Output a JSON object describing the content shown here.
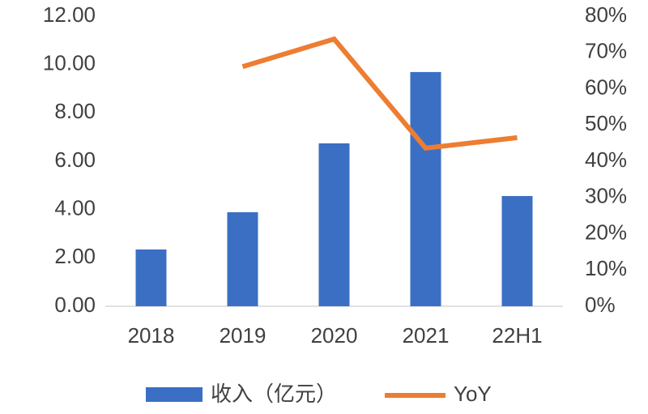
{
  "chart_data": {
    "type": "bar",
    "categories": [
      "2018",
      "2019",
      "2020",
      "2021",
      "22H1"
    ],
    "series": [
      {
        "name": "收入（亿元）",
        "type": "bar",
        "color": "#3a6fc4",
        "values": [
          2.35,
          3.89,
          6.74,
          9.69,
          4.56
        ]
      },
      {
        "name": "YoY",
        "type": "line",
        "color": "#ed7d31",
        "axis": "y2",
        "values": [
          null,
          66.1,
          73.7,
          43.6,
          46.5
        ]
      }
    ],
    "ylim": [
      0,
      12
    ],
    "yticks": [
      {
        "value": 0,
        "label": "0.00"
      },
      {
        "value": 2,
        "label": "2.00"
      },
      {
        "value": 4,
        "label": "4.00"
      },
      {
        "value": 6,
        "label": "6.00"
      },
      {
        "value": 8,
        "label": "8.00"
      },
      {
        "value": 10,
        "label": "10.00"
      },
      {
        "value": 12,
        "label": "12.00"
      }
    ],
    "y2lim": [
      0,
      80
    ],
    "y2ticks": [
      {
        "value": 0,
        "label": "0%"
      },
      {
        "value": 10,
        "label": "10%"
      },
      {
        "value": 20,
        "label": "20%"
      },
      {
        "value": 30,
        "label": "30%"
      },
      {
        "value": 40,
        "label": "40%"
      },
      {
        "value": 50,
        "label": "50%"
      },
      {
        "value": 60,
        "label": "60%"
      },
      {
        "value": 70,
        "label": "70%"
      },
      {
        "value": 80,
        "label": "80%"
      }
    ],
    "grid": false,
    "legend": "bottom"
  }
}
